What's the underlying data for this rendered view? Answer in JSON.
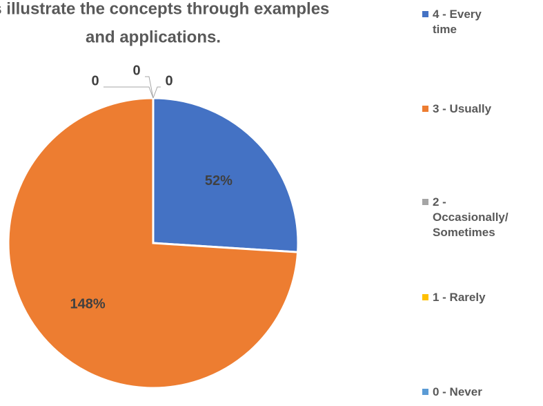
{
  "chart_data": {
    "type": "pie",
    "title": [
      "ers illustrate the concepts through examples",
      "and applications."
    ],
    "categories": [
      "4 - Every time",
      "3 - Usually",
      "2 - Occasionally/ Sometimes",
      "1 - Rarely",
      "0 - Never"
    ],
    "values": [
      52,
      148,
      0,
      0,
      0
    ],
    "value_labels": [
      "52%",
      "148%",
      "0",
      "0",
      "0"
    ],
    "colors": [
      "#4472c4",
      "#ed7d31",
      "#a5a5a5",
      "#ffc000",
      "#5b9bd5"
    ],
    "legend": "right"
  }
}
